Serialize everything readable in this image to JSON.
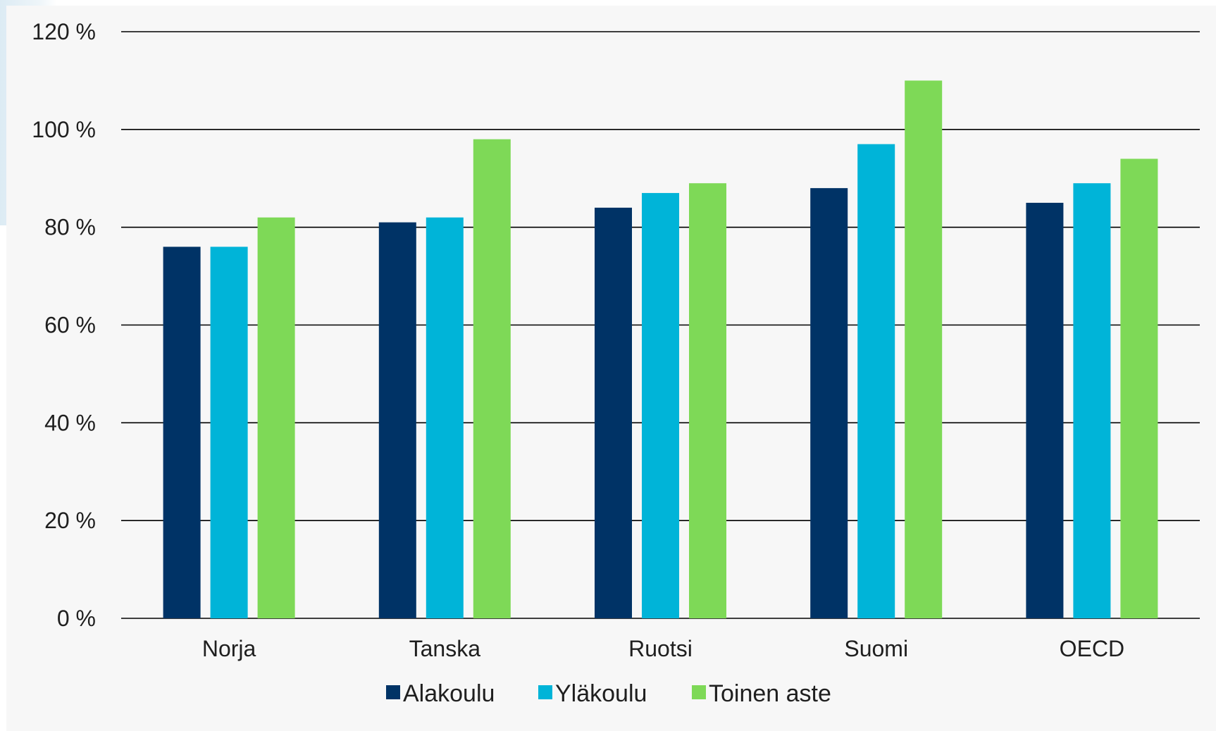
{
  "chart_data": {
    "type": "bar",
    "categories": [
      "Norja",
      "Tanska",
      "Ruotsi",
      "Suomi",
      "OECD"
    ],
    "series": [
      {
        "name": "Alakoulu",
        "color": "#003366",
        "values": [
          76,
          81,
          84,
          88,
          85
        ]
      },
      {
        "name": "Yläkoulu",
        "color": "#00b4d8",
        "values": [
          76,
          82,
          87,
          97,
          89
        ]
      },
      {
        "name": "Toinen aste",
        "color": "#7ed957",
        "values": [
          82,
          98,
          89,
          110,
          94
        ]
      }
    ],
    "y_ticks": [
      0,
      20,
      40,
      60,
      80,
      100,
      120
    ],
    "y_tick_labels": [
      "0 %",
      "20 %",
      "40 %",
      "60 %",
      "80 %",
      "100 %",
      "120 %"
    ],
    "ylim": [
      0,
      120
    ],
    "grid": true,
    "legend_position": "bottom",
    "title": "",
    "xlabel": "",
    "ylabel": ""
  },
  "colors": {
    "panel_background": "#f7f7f7",
    "gridline": "#000000",
    "text": "#1f1f1f"
  }
}
